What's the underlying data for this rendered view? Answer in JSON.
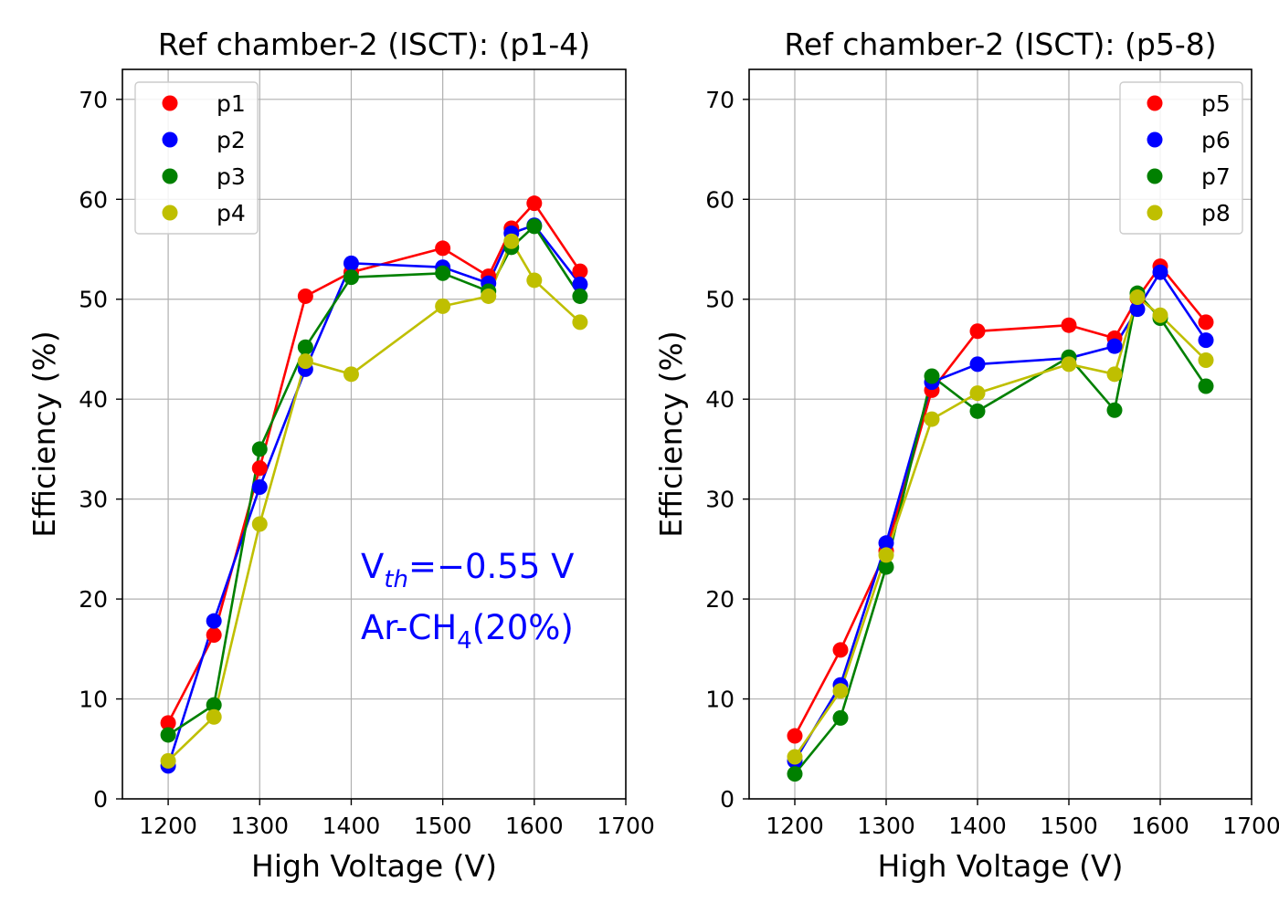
{
  "chart_data": [
    {
      "type": "line",
      "title": "Ref chamber-2 (ISCT): (p1-4)",
      "xlabel": "High Voltage (V)",
      "ylabel": "Efficiency (%)",
      "xlim": [
        1150,
        1700
      ],
      "ylim": [
        0,
        73
      ],
      "xticks": [
        1200,
        1300,
        1400,
        1500,
        1600,
        1700
      ],
      "yticks": [
        0,
        10,
        20,
        30,
        40,
        50,
        60,
        70
      ],
      "grid": true,
      "legend_position": "upper left",
      "annotations": [
        {
          "text": "V",
          "sub": "th",
          "suffix": "=−0.55 V"
        },
        {
          "text": "Ar-CH",
          "sub": "4",
          "suffix": "(20%)"
        }
      ],
      "annotation_color": "#0000ff",
      "x": [
        1200,
        1250,
        1300,
        1350,
        1400,
        1500,
        1550,
        1575,
        1600,
        1650
      ],
      "series": [
        {
          "name": "p1",
          "color": "#ff0000",
          "values": [
            7.6,
            16.4,
            33.1,
            50.3,
            52.7,
            55.1,
            52.3,
            57.1,
            59.6,
            52.8
          ]
        },
        {
          "name": "p2",
          "color": "#0000ff",
          "values": [
            3.3,
            17.8,
            31.2,
            43.0,
            53.6,
            53.2,
            51.6,
            56.6,
            57.4,
            51.5
          ]
        },
        {
          "name": "p3",
          "color": "#008000",
          "values": [
            6.4,
            9.4,
            35.0,
            45.2,
            52.2,
            52.6,
            50.8,
            55.2,
            57.3,
            50.3
          ]
        },
        {
          "name": "p4",
          "color": "#bfbf00",
          "values": [
            3.8,
            8.2,
            27.5,
            43.8,
            42.5,
            49.3,
            50.3,
            55.8,
            51.9,
            47.7
          ]
        }
      ]
    },
    {
      "type": "line",
      "title": "Ref chamber-2 (ISCT): (p5-8)",
      "xlabel": "High Voltage (V)",
      "ylabel": "Efficiency (%)",
      "xlim": [
        1150,
        1700
      ],
      "ylim": [
        0,
        73
      ],
      "xticks": [
        1200,
        1300,
        1400,
        1500,
        1600,
        1700
      ],
      "yticks": [
        0,
        10,
        20,
        30,
        40,
        50,
        60,
        70
      ],
      "grid": true,
      "legend_position": "upper right",
      "x": [
        1200,
        1250,
        1300,
        1350,
        1400,
        1500,
        1550,
        1575,
        1600,
        1650
      ],
      "series": [
        {
          "name": "p5",
          "color": "#ff0000",
          "values": [
            6.3,
            14.9,
            24.8,
            40.9,
            46.8,
            47.4,
            46.1,
            50.1,
            53.3,
            47.7
          ]
        },
        {
          "name": "p6",
          "color": "#0000ff",
          "values": [
            3.8,
            11.4,
            25.6,
            41.7,
            43.5,
            44.1,
            45.3,
            49.0,
            52.7,
            45.9
          ]
        },
        {
          "name": "p7",
          "color": "#008000",
          "values": [
            2.5,
            8.1,
            23.2,
            42.3,
            38.8,
            44.2,
            38.9,
            50.6,
            48.1,
            41.3
          ]
        },
        {
          "name": "p8",
          "color": "#bfbf00",
          "values": [
            4.2,
            10.8,
            24.4,
            38.0,
            40.6,
            43.5,
            42.5,
            50.2,
            48.4,
            43.9
          ]
        }
      ]
    }
  ]
}
